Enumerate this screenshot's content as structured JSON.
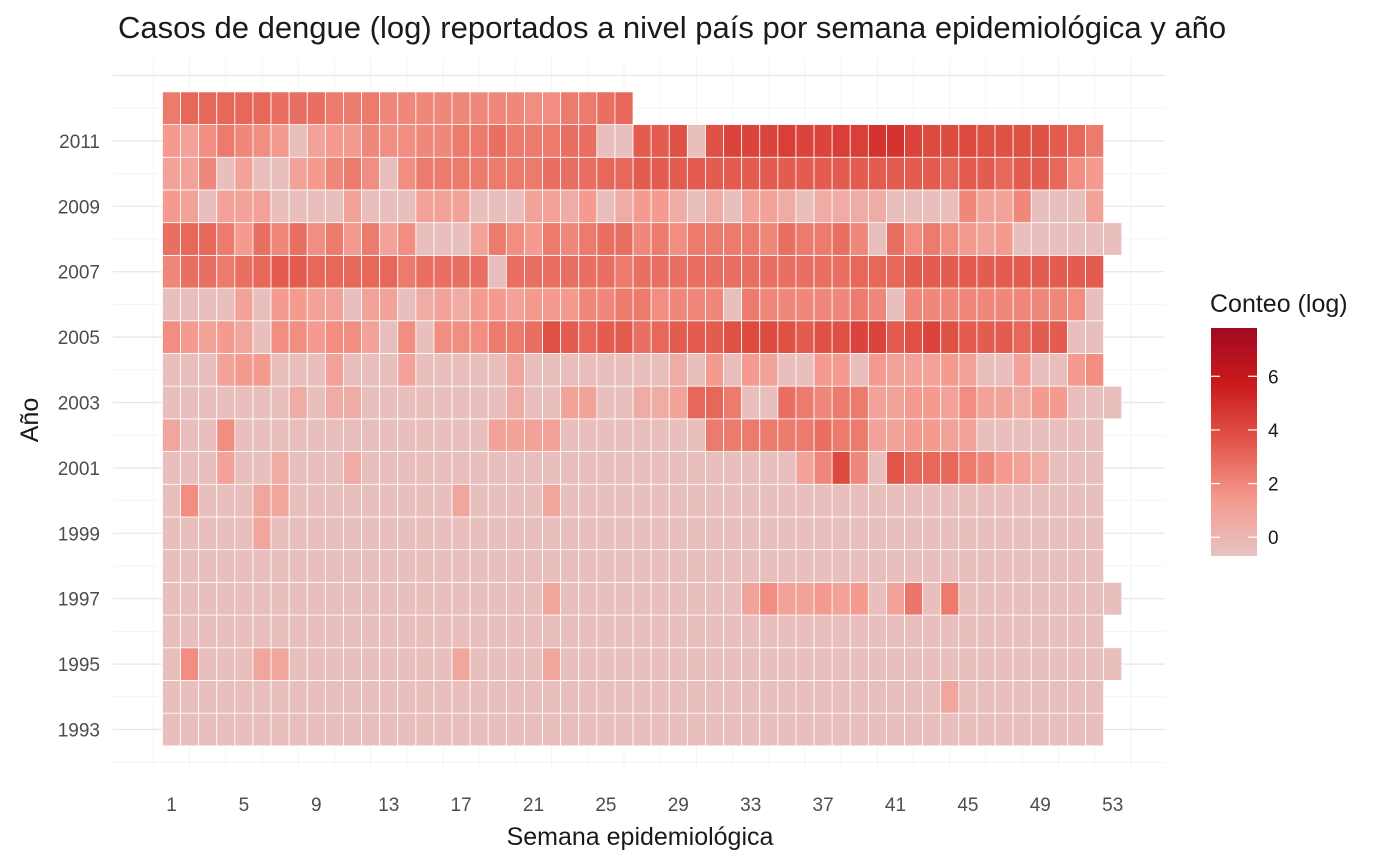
{
  "chart_data": {
    "type": "heatmap",
    "title": "Casos de dengue (log) reportados a nivel país por semana epidemiológica y año",
    "xlabel": "Semana epidemiológica",
    "ylabel": "Año",
    "x_ticks": [
      "1",
      "5",
      "9",
      "13",
      "17",
      "21",
      "25",
      "29",
      "33",
      "37",
      "41",
      "45",
      "49",
      "53"
    ],
    "y_ticks": [
      "1993",
      "1995",
      "1997",
      "1999",
      "2001",
      "2003",
      "2005",
      "2007",
      "2009",
      "2011"
    ],
    "x_range": [
      1,
      53
    ],
    "y_range": [
      1993,
      2012
    ],
    "grid": true,
    "legend": {
      "title": "Conteo (log)",
      "placement": "right",
      "ticks": [
        "0",
        "2",
        "4",
        "6"
      ],
      "range": [
        -0.7,
        7.8
      ],
      "colors": [
        "#e8c3c3",
        "#f49a8d",
        "#e2574a",
        "#cb1a1c",
        "#a10a22"
      ]
    },
    "rows": [
      {
        "year": 1993,
        "values": [
          -0.5,
          -0.5,
          -0.5,
          -0.5,
          -0.5,
          -0.5,
          -0.5,
          -0.5,
          -0.5,
          -0.5,
          -0.5,
          -0.5,
          -0.5,
          -0.5,
          -0.5,
          -0.5,
          -0.5,
          -0.5,
          -0.5,
          -0.5,
          -0.5,
          -0.5,
          -0.5,
          -0.5,
          -0.5,
          -0.5,
          -0.5,
          -0.5,
          -0.5,
          -0.5,
          -0.5,
          -0.5,
          -0.5,
          -0.5,
          -0.5,
          -0.5,
          -0.5,
          -0.5,
          -0.5,
          -0.5,
          -0.5,
          -0.5,
          -0.5,
          -0.5,
          -0.5,
          -0.5,
          -0.5,
          -0.5,
          -0.5,
          -0.5,
          -0.5,
          -0.5
        ]
      },
      {
        "year": 1994,
        "values": [
          -0.5,
          -0.5,
          -0.5,
          -0.5,
          -0.5,
          -0.5,
          -0.5,
          -0.5,
          -0.5,
          -0.5,
          -0.5,
          -0.5,
          -0.5,
          -0.5,
          -0.5,
          -0.5,
          -0.5,
          -0.5,
          -0.5,
          -0.5,
          -0.5,
          -0.5,
          -0.5,
          -0.5,
          -0.5,
          -0.5,
          -0.5,
          -0.5,
          -0.5,
          -0.5,
          -0.5,
          -0.5,
          -0.5,
          -0.5,
          -0.5,
          -0.5,
          -0.5,
          -0.5,
          -0.5,
          -0.5,
          -0.5,
          -0.5,
          -0.5,
          0.8,
          -0.5,
          -0.5,
          -0.5,
          -0.5,
          -0.5,
          -0.5,
          -0.5,
          -0.5
        ]
      },
      {
        "year": 1995,
        "values": [
          -0.5,
          1.8,
          -0.5,
          -0.5,
          -0.5,
          0.8,
          0.8,
          -0.5,
          -0.5,
          -0.5,
          -0.5,
          -0.5,
          -0.5,
          -0.5,
          -0.5,
          -0.5,
          0.8,
          -0.5,
          -0.5,
          -0.5,
          -0.5,
          0.8,
          -0.5,
          -0.5,
          -0.5,
          -0.5,
          -0.5,
          -0.5,
          -0.5,
          -0.5,
          -0.5,
          -0.5,
          -0.5,
          -0.5,
          -0.5,
          -0.5,
          -0.5,
          -0.5,
          -0.5,
          -0.5,
          -0.5,
          -0.5,
          -0.5,
          -0.5,
          -0.5,
          -0.5,
          -0.5,
          -0.5,
          -0.5,
          -0.5,
          -0.5,
          -0.5,
          -0.5
        ]
      },
      {
        "year": 1996,
        "values": [
          -0.5,
          -0.5,
          -0.5,
          -0.5,
          -0.5,
          -0.5,
          -0.5,
          -0.5,
          -0.5,
          -0.5,
          -0.5,
          -0.5,
          -0.5,
          -0.5,
          -0.5,
          -0.5,
          -0.5,
          -0.5,
          -0.5,
          -0.5,
          -0.5,
          -0.5,
          -0.5,
          -0.5,
          -0.5,
          -0.5,
          -0.5,
          -0.5,
          -0.5,
          -0.5,
          -0.5,
          -0.5,
          -0.5,
          -0.5,
          -0.5,
          -0.5,
          -0.5,
          -0.5,
          -0.5,
          -0.5,
          -0.5,
          -0.5,
          -0.5,
          -0.5,
          -0.5,
          -0.5,
          -0.5,
          -0.5,
          -0.5,
          -0.5,
          -0.5,
          -0.5
        ]
      },
      {
        "year": 1997,
        "values": [
          -0.5,
          -0.5,
          -0.5,
          -0.5,
          -0.5,
          -0.5,
          -0.5,
          -0.5,
          -0.5,
          -0.5,
          -0.5,
          -0.5,
          -0.5,
          -0.5,
          -0.5,
          -0.5,
          -0.5,
          -0.5,
          -0.5,
          -0.5,
          -0.5,
          0.8,
          -0.5,
          -0.5,
          -0.5,
          -0.5,
          -0.5,
          -0.5,
          -0.5,
          -0.5,
          -0.5,
          -0.5,
          1.0,
          1.8,
          1.0,
          1.0,
          1.4,
          1.0,
          1.4,
          -0.5,
          1.0,
          2.6,
          -0.5,
          2.4,
          -0.5,
          -0.5,
          -0.5,
          -0.5,
          -0.5,
          -0.5,
          -0.5,
          -0.5,
          -0.5
        ]
      },
      {
        "year": 1998,
        "values": [
          -0.5,
          -0.5,
          -0.5,
          -0.5,
          -0.5,
          -0.5,
          -0.5,
          -0.5,
          -0.5,
          -0.5,
          -0.5,
          -0.5,
          -0.5,
          -0.5,
          -0.5,
          -0.5,
          -0.5,
          -0.5,
          -0.5,
          -0.5,
          -0.5,
          -0.5,
          -0.5,
          -0.5,
          -0.5,
          -0.5,
          -0.5,
          -0.5,
          -0.5,
          -0.5,
          -0.5,
          -0.5,
          -0.5,
          -0.5,
          -0.5,
          -0.5,
          -0.5,
          -0.5,
          -0.5,
          -0.5,
          -0.5,
          -0.5,
          -0.5,
          -0.5,
          -0.5,
          -0.5,
          -0.5,
          -0.5,
          -0.5,
          -0.5,
          -0.5,
          -0.5
        ]
      },
      {
        "year": 1999,
        "values": [
          -0.5,
          -0.5,
          -0.5,
          -0.5,
          -0.5,
          0.8,
          -0.5,
          -0.5,
          -0.5,
          -0.5,
          -0.5,
          -0.5,
          -0.5,
          -0.5,
          -0.5,
          -0.5,
          -0.5,
          -0.5,
          -0.5,
          -0.5,
          -0.5,
          -0.5,
          -0.5,
          -0.5,
          -0.5,
          -0.5,
          -0.5,
          -0.5,
          -0.5,
          -0.5,
          -0.5,
          -0.5,
          -0.5,
          -0.5,
          -0.5,
          -0.5,
          -0.5,
          -0.5,
          -0.5,
          -0.5,
          -0.5,
          -0.5,
          -0.5,
          -0.5,
          -0.5,
          -0.5,
          -0.5,
          -0.5,
          -0.5,
          -0.5,
          -0.5,
          -0.5
        ]
      },
      {
        "year": 2000,
        "values": [
          -0.5,
          1.8,
          -0.5,
          -0.5,
          -0.5,
          0.8,
          0.8,
          -0.5,
          -0.5,
          -0.5,
          -0.5,
          -0.5,
          -0.5,
          -0.5,
          -0.5,
          -0.5,
          0.8,
          -0.5,
          -0.5,
          -0.5,
          -0.5,
          0.8,
          -0.5,
          -0.5,
          -0.5,
          -0.5,
          -0.5,
          -0.5,
          -0.5,
          -0.5,
          -0.5,
          -0.5,
          -0.5,
          -0.5,
          -0.5,
          -0.5,
          -0.5,
          -0.5,
          -0.5,
          -0.5,
          -0.5,
          -0.5,
          -0.5,
          -0.5,
          -0.5,
          -0.5,
          -0.5,
          -0.5,
          -0.5,
          -0.5,
          -0.5,
          -0.5
        ]
      },
      {
        "year": 2001,
        "values": [
          -0.5,
          -0.5,
          -0.5,
          1.0,
          -0.5,
          -0.5,
          0.5,
          -0.5,
          -0.5,
          -0.5,
          0.5,
          -0.5,
          -0.5,
          -0.5,
          -0.5,
          -0.5,
          -0.5,
          -0.5,
          -0.5,
          -0.5,
          -0.5,
          -0.5,
          -0.5,
          -0.5,
          -0.5,
          -0.5,
          -0.5,
          -0.5,
          -0.5,
          -0.5,
          -0.5,
          -0.5,
          -0.5,
          -0.5,
          -0.5,
          1.0,
          2.0,
          4.0,
          2.0,
          -0.5,
          3.6,
          3.0,
          3.0,
          3.0,
          2.4,
          2.0,
          1.4,
          1.0,
          0.5,
          -0.5,
          -0.5,
          -0.5
        ]
      },
      {
        "year": 2002,
        "values": [
          0.8,
          -0.5,
          -0.5,
          1.8,
          -0.5,
          -0.5,
          -0.5,
          -0.5,
          -0.5,
          -0.5,
          -0.5,
          -0.5,
          -0.5,
          -0.5,
          -0.5,
          -0.5,
          -0.5,
          -0.5,
          1.0,
          1.0,
          1.0,
          1.0,
          -0.5,
          -0.5,
          -0.5,
          -0.5,
          -0.5,
          -0.5,
          -0.5,
          -0.5,
          2.4,
          2.4,
          2.4,
          2.4,
          2.4,
          2.4,
          2.8,
          2.4,
          2.4,
          1.0,
          1.0,
          1.4,
          1.4,
          1.0,
          1.0,
          -0.5,
          -0.5,
          -0.5,
          -0.5,
          -0.5,
          -0.5,
          -0.5
        ]
      },
      {
        "year": 2003,
        "values": [
          -0.5,
          -0.5,
          -0.5,
          -0.5,
          -0.5,
          -0.5,
          -0.5,
          0.5,
          -0.5,
          0.5,
          0.5,
          -0.5,
          -0.5,
          -0.5,
          -0.5,
          -0.5,
          -0.5,
          -0.5,
          -0.5,
          0.5,
          -0.5,
          -0.5,
          1.0,
          1.0,
          -0.5,
          -0.5,
          0.5,
          0.5,
          1.0,
          3.0,
          3.0,
          2.4,
          -0.5,
          -0.5,
          2.8,
          2.4,
          2.0,
          2.4,
          2.4,
          1.0,
          1.0,
          1.4,
          1.4,
          1.0,
          1.8,
          1.0,
          1.0,
          0.5,
          1.4,
          1.4,
          -0.5,
          -0.5,
          -0.5
        ]
      },
      {
        "year": 2004,
        "values": [
          -0.5,
          -0.5,
          -0.5,
          1.0,
          1.4,
          1.4,
          -0.5,
          -0.5,
          -0.5,
          1.0,
          -0.5,
          -0.5,
          -0.5,
          1.0,
          -0.5,
          -0.5,
          -0.5,
          -0.5,
          -0.5,
          0.8,
          -0.5,
          -0.5,
          -0.5,
          -0.5,
          -0.5,
          -0.5,
          -0.5,
          -0.5,
          0.5,
          -0.5,
          1.4,
          -0.5,
          1.4,
          1.0,
          -0.5,
          -0.5,
          1.4,
          1.4,
          -0.5,
          1.4,
          1.0,
          1.0,
          1.0,
          1.4,
          1.0,
          -0.5,
          -0.5,
          1.0,
          -0.5,
          -0.5,
          1.4,
          1.8
        ]
      },
      {
        "year": 2005,
        "values": [
          1.8,
          1.4,
          1.0,
          1.4,
          0.8,
          -0.5,
          1.8,
          1.8,
          1.4,
          1.8,
          1.8,
          1.0,
          -0.5,
          1.8,
          -0.5,
          1.8,
          1.8,
          1.8,
          2.4,
          2.4,
          2.8,
          3.8,
          3.4,
          3.0,
          3.4,
          3.4,
          2.8,
          3.0,
          3.4,
          3.4,
          3.4,
          3.8,
          4.0,
          4.0,
          3.8,
          3.4,
          3.8,
          3.8,
          4.2,
          4.2,
          3.4,
          3.8,
          4.2,
          3.8,
          3.4,
          3.4,
          3.4,
          3.0,
          3.4,
          3.4,
          -0.5,
          -0.5
        ]
      },
      {
        "year": 2006,
        "values": [
          -0.5,
          -0.5,
          -0.5,
          -0.5,
          1.0,
          -0.5,
          1.4,
          1.4,
          1.0,
          1.0,
          -0.5,
          1.0,
          1.0,
          -0.5,
          0.5,
          1.0,
          0.5,
          1.4,
          1.4,
          1.0,
          1.4,
          1.4,
          1.4,
          2.0,
          2.0,
          2.4,
          2.4,
          1.8,
          2.0,
          2.0,
          2.0,
          -0.5,
          2.4,
          2.0,
          2.0,
          2.0,
          2.0,
          2.0,
          2.4,
          2.0,
          -0.5,
          2.0,
          2.0,
          2.0,
          2.0,
          2.0,
          2.0,
          2.0,
          2.0,
          2.0,
          1.8,
          -0.5
        ]
      },
      {
        "year": 2007,
        "values": [
          2.0,
          2.8,
          2.8,
          2.4,
          2.8,
          3.0,
          3.4,
          3.4,
          3.0,
          3.0,
          3.0,
          3.0,
          3.0,
          2.4,
          2.8,
          2.8,
          2.8,
          2.8,
          -0.5,
          2.8,
          2.8,
          2.8,
          2.8,
          2.8,
          2.8,
          2.4,
          2.8,
          2.8,
          2.8,
          2.8,
          2.8,
          2.8,
          2.8,
          2.8,
          2.8,
          2.8,
          2.8,
          2.8,
          3.0,
          3.0,
          3.0,
          3.4,
          3.4,
          3.4,
          3.4,
          3.4,
          3.4,
          3.4,
          3.4,
          3.4,
          3.4,
          3.4
        ]
      },
      {
        "year": 2008,
        "values": [
          2.8,
          3.0,
          3.0,
          2.4,
          1.4,
          2.8,
          2.0,
          2.8,
          1.8,
          2.4,
          1.4,
          2.4,
          1.0,
          1.8,
          -0.5,
          -0.5,
          -0.5,
          1.0,
          2.4,
          1.8,
          1.4,
          2.4,
          2.0,
          2.4,
          2.8,
          2.8,
          2.0,
          2.4,
          1.8,
          2.4,
          2.4,
          2.4,
          2.4,
          2.0,
          2.8,
          2.4,
          2.4,
          2.8,
          2.0,
          -0.5,
          2.8,
          1.8,
          2.4,
          1.8,
          1.4,
          1.0,
          1.4,
          -0.5,
          -0.5,
          -0.5,
          -0.5,
          -0.5,
          -0.5
        ]
      },
      {
        "year": 2009,
        "values": [
          1.4,
          1.0,
          -0.5,
          1.0,
          1.0,
          1.0,
          -0.5,
          -0.5,
          -0.5,
          -0.5,
          1.0,
          -0.5,
          -0.5,
          -0.5,
          1.0,
          1.0,
          1.0,
          -0.5,
          -0.5,
          -0.5,
          1.0,
          1.0,
          0.5,
          1.4,
          -0.5,
          0.5,
          1.4,
          1.4,
          0.5,
          -0.5,
          0.5,
          -0.5,
          1.0,
          1.0,
          0.5,
          -0.5,
          0.5,
          0.5,
          0.5,
          0.5,
          -0.5,
          -0.5,
          -0.5,
          -0.5,
          2.0,
          1.0,
          1.0,
          2.0,
          -0.5,
          -0.5,
          -0.5,
          1.0
        ]
      },
      {
        "year": 2010,
        "values": [
          1.0,
          1.0,
          2.0,
          -0.5,
          1.0,
          -0.5,
          -0.5,
          1.0,
          1.4,
          2.0,
          2.4,
          1.8,
          -0.5,
          1.8,
          2.4,
          2.4,
          2.4,
          2.4,
          2.4,
          2.4,
          2.4,
          2.8,
          2.8,
          2.8,
          3.0,
          3.0,
          3.4,
          3.4,
          3.4,
          3.4,
          3.4,
          3.4,
          3.4,
          3.4,
          3.4,
          3.4,
          3.4,
          3.4,
          3.4,
          3.4,
          3.4,
          3.4,
          3.4,
          3.0,
          3.4,
          3.4,
          3.0,
          3.4,
          3.4,
          3.0,
          1.8,
          1.4
        ]
      },
      {
        "year": 2011,
        "values": [
          1.4,
          1.0,
          1.8,
          2.4,
          2.0,
          1.8,
          1.4,
          -0.5,
          1.0,
          1.4,
          1.4,
          2.0,
          1.8,
          1.8,
          2.0,
          2.0,
          2.4,
          2.4,
          2.8,
          2.4,
          2.4,
          2.4,
          2.8,
          2.8,
          -0.5,
          -0.5,
          3.4,
          3.4,
          3.8,
          -0.5,
          3.8,
          4.2,
          4.2,
          4.2,
          4.4,
          4.2,
          4.2,
          4.4,
          4.4,
          4.8,
          4.8,
          4.2,
          4.0,
          4.0,
          4.0,
          3.8,
          3.8,
          3.8,
          3.8,
          3.4,
          3.0,
          2.4
        ]
      },
      {
        "year": 2012,
        "values": [
          2.4,
          3.0,
          3.0,
          3.0,
          3.0,
          3.0,
          2.8,
          2.8,
          2.8,
          2.4,
          2.4,
          2.4,
          2.0,
          2.0,
          2.0,
          2.0,
          2.0,
          2.0,
          2.0,
          2.0,
          1.8,
          1.8,
          2.4,
          2.4,
          2.8,
          3.0
        ]
      }
    ]
  }
}
